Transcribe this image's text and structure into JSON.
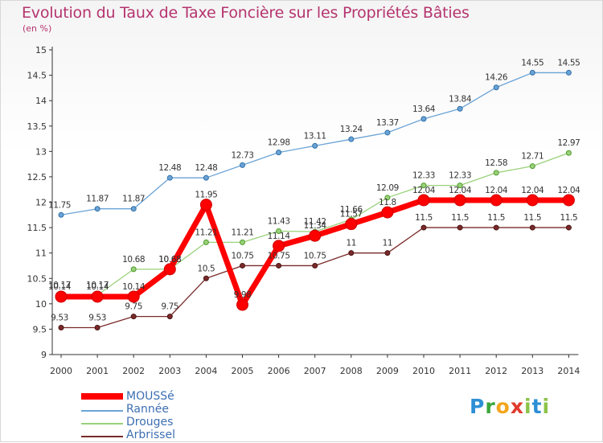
{
  "title": "Evolution du Taux de Taxe Foncière sur les Propriétés Bâties",
  "unit": "(en %)",
  "chart_data": {
    "type": "line",
    "title": "Evolution du Taux de Taxe Foncière sur les Propriétés Bâties",
    "ylabel": "(en %)",
    "xlabel": "",
    "x": [
      "2000",
      "2001",
      "2002",
      "2003",
      "2004",
      "2005",
      "2006",
      "2007",
      "2008",
      "2009",
      "2010",
      "2011",
      "2012",
      "2013",
      "2014"
    ],
    "ylim": [
      9,
      15
    ],
    "yticks": [
      "9",
      "9.5",
      "10",
      "10.5",
      "11",
      "11.5",
      "12",
      "12.5",
      "13",
      "13.5",
      "14",
      "14.5",
      "15"
    ],
    "grid": false,
    "legend_position": "bottom-left",
    "series": [
      {
        "name": "MOUSSé",
        "color": "#ff0000",
        "values": [
          10.14,
          10.14,
          10.14,
          10.68,
          11.95,
          9.98,
          11.14,
          11.34,
          11.57,
          11.8,
          12.04,
          12.04,
          12.04,
          12.04,
          12.04
        ],
        "labels": [
          "10.14",
          "10.14",
          "10.14",
          "10.68",
          "11.95",
          "9.98",
          "11.14",
          "11.34",
          "11.57",
          "11.8",
          "12.04",
          "12.04",
          "12.04",
          "12.04",
          "12.04"
        ]
      },
      {
        "name": "Rannée",
        "color": "#6aa3d6",
        "values": [
          11.75,
          11.87,
          11.87,
          12.48,
          12.48,
          12.73,
          12.98,
          13.11,
          13.24,
          13.37,
          13.64,
          13.84,
          14.26,
          14.55,
          14.55
        ],
        "labels": [
          "11.75",
          "11.87",
          "11.87",
          "12.48",
          "12.48",
          "12.73",
          "12.98",
          "13.11",
          "13.24",
          "13.37",
          "13.64",
          "13.84",
          "14.26",
          "14.55",
          "14.55"
        ]
      },
      {
        "name": "Drouges",
        "color": "#99d17a",
        "values": [
          10.17,
          10.17,
          10.68,
          10.68,
          11.21,
          11.21,
          11.43,
          11.42,
          11.66,
          12.09,
          12.33,
          12.33,
          12.58,
          12.71,
          12.97
        ],
        "labels": [
          "10.17",
          "10.17",
          "10.68",
          "10.68",
          "11.21",
          "11.21",
          "11.43",
          "11.42",
          "11.66",
          "12.09",
          "12.33",
          "12.33",
          "12.58",
          "12.71",
          "12.97"
        ]
      },
      {
        "name": "Arbrissel",
        "color": "#7a2a2a",
        "values": [
          9.53,
          9.53,
          9.75,
          9.75,
          10.5,
          10.75,
          10.75,
          10.75,
          11,
          11,
          11.5,
          11.5,
          11.5,
          11.5,
          11.5
        ],
        "labels": [
          "9.53",
          "9.53",
          "9.75",
          "9.75",
          "10.5",
          "10.75",
          "10.75",
          "10.75",
          "11",
          "11",
          "11.5",
          "11.5",
          "11.5",
          "11.5",
          "11.5"
        ]
      }
    ]
  },
  "legend": [
    {
      "label": "MOUSSé",
      "color": "#ff0000",
      "width": 7
    },
    {
      "label": "Rannée",
      "color": "#6aa3d6",
      "width": 1.5
    },
    {
      "label": "Drouges",
      "color": "#99d17a",
      "width": 1.5
    },
    {
      "label": "Arbrissel",
      "color": "#7a2a2a",
      "width": 1.5
    }
  ],
  "logo": {
    "p": "P",
    "r": "r",
    "o": "o",
    "x": "x",
    "i": "i",
    "t": "t",
    "i2": "i"
  }
}
